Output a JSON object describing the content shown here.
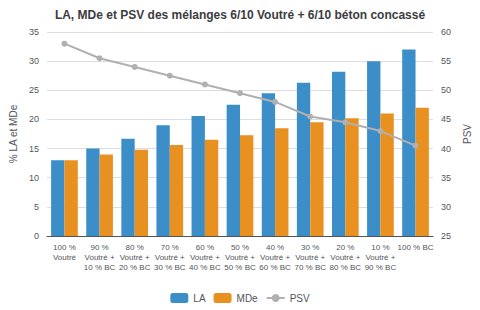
{
  "chart_data": {
    "type": "bar",
    "title": "LA, MDe et PSV des mélanges 6/10 Voutré + 6/10 béton concassé",
    "categories": [
      "100 %\nVoutré",
      "90 %\nVoutré +\n10 % BC",
      "80 %\nVoutré +\n20 % BC",
      "70 %\nVoutré +\n30 % BC",
      "60 %\nVoutré +\n40 % BC",
      "50 %\nVoutré +\n50 % BC",
      "40 %\nVoutré +\n60 % BC",
      "30 %\nVoutré +\n70 % BC",
      "20 %\nVoutré +\n80 % BC",
      "10 %\nVoutré +\n90 % BC",
      "100 % BC"
    ],
    "series": [
      {
        "name": "LA",
        "type": "bar",
        "color": "#3B8EC8",
        "values": [
          13.0,
          15.0,
          16.7,
          19.0,
          20.6,
          22.5,
          24.5,
          26.3,
          28.2,
          30.0,
          32.0
        ]
      },
      {
        "name": "MDe",
        "type": "bar",
        "color": "#E89020",
        "values": [
          13.0,
          14.0,
          14.8,
          15.6,
          16.5,
          17.3,
          18.5,
          19.5,
          20.2,
          21.0,
          22.0
        ]
      },
      {
        "name": "PSV",
        "type": "line",
        "axis": "y2",
        "marker": "circle",
        "color": "#B0B0B0",
        "values": [
          58.0,
          55.5,
          54.0,
          52.5,
          51.0,
          49.5,
          48.0,
          45.5,
          44.5,
          43.0,
          40.5
        ]
      }
    ],
    "ylabel": "% LA et MDe",
    "y2label": "PSV",
    "ylim": [
      0,
      35
    ],
    "yticks": [
      0,
      5,
      10,
      15,
      20,
      25,
      30,
      35
    ],
    "y2lim": [
      25,
      60
    ],
    "y2ticks": [
      25,
      30,
      35,
      40,
      45,
      50,
      55,
      60
    ],
    "grid": true,
    "legend": "bottom"
  }
}
